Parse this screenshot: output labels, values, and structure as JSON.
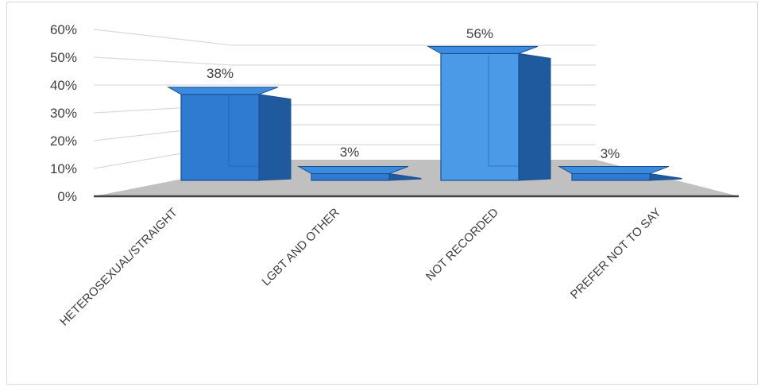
{
  "chart_data": {
    "type": "bar",
    "categories": [
      "HETEROSEXUAL/STRAIGHT",
      "LGBT AND OTHER",
      "NOT RECORDED",
      "PREFER NOT TO SAY"
    ],
    "values": [
      38,
      3,
      56,
      3
    ],
    "data_labels": [
      "38%",
      "3%",
      "56%",
      "3%"
    ],
    "yticks": [
      "0%",
      "10%",
      "20%",
      "30%",
      "40%",
      "50%",
      "60%"
    ],
    "ylim": [
      0,
      60
    ],
    "style": "3d-column",
    "grid": true,
    "legend": "none",
    "colors": {
      "bar_front": "#2e7bd1",
      "bar_front_light": "#4a9ae8",
      "bar_side": "#1f5a9e",
      "bar_top": "#3b8ce0",
      "bar_edge": "#1a4f8f",
      "floor": "#c0c0c0",
      "floor_edge": "#404040",
      "grid": "#d9d9d9",
      "wall_grid": "#d9d9d9"
    }
  }
}
